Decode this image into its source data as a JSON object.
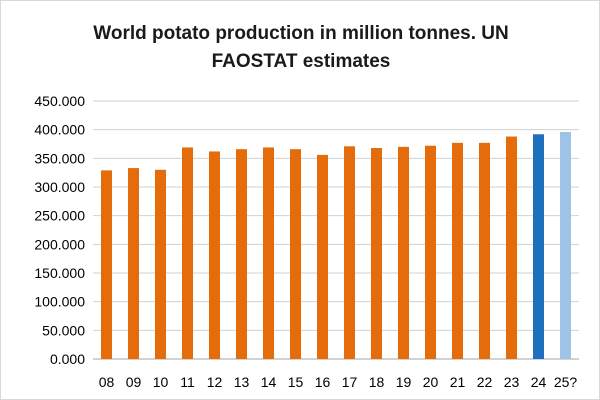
{
  "chart_data": {
    "type": "bar",
    "title_line1": "World potato production in million tonnes. UN",
    "title_line2": "FAOSTAT estimates",
    "xlabel": "",
    "ylabel": "",
    "categories": [
      "08",
      "09",
      "10",
      "11",
      "12",
      "13",
      "14",
      "15",
      "16",
      "17",
      "18",
      "19",
      "20",
      "21",
      "22",
      "23",
      "24",
      "25?"
    ],
    "values": [
      329,
      333,
      330,
      369,
      362,
      366,
      369,
      366,
      356,
      371,
      368,
      370,
      372,
      377,
      377,
      388,
      392,
      396
    ],
    "bar_colors": [
      "#E46C0A",
      "#E46C0A",
      "#E46C0A",
      "#E46C0A",
      "#E46C0A",
      "#E46C0A",
      "#E46C0A",
      "#E46C0A",
      "#E46C0A",
      "#E46C0A",
      "#E46C0A",
      "#E46C0A",
      "#E46C0A",
      "#E46C0A",
      "#E46C0A",
      "#E46C0A",
      "#1F6FBF",
      "#9DC3E6"
    ],
    "ylim": [
      0,
      450
    ],
    "yticks": [
      0,
      50,
      100,
      150,
      200,
      250,
      300,
      350,
      400,
      450
    ],
    "ytick_labels": [
      "0.000",
      "50.000",
      "100.000",
      "150.000",
      "200.000",
      "250.000",
      "300.000",
      "350.000",
      "400.000",
      "450.000"
    ],
    "grid": true,
    "legend": "none"
  }
}
